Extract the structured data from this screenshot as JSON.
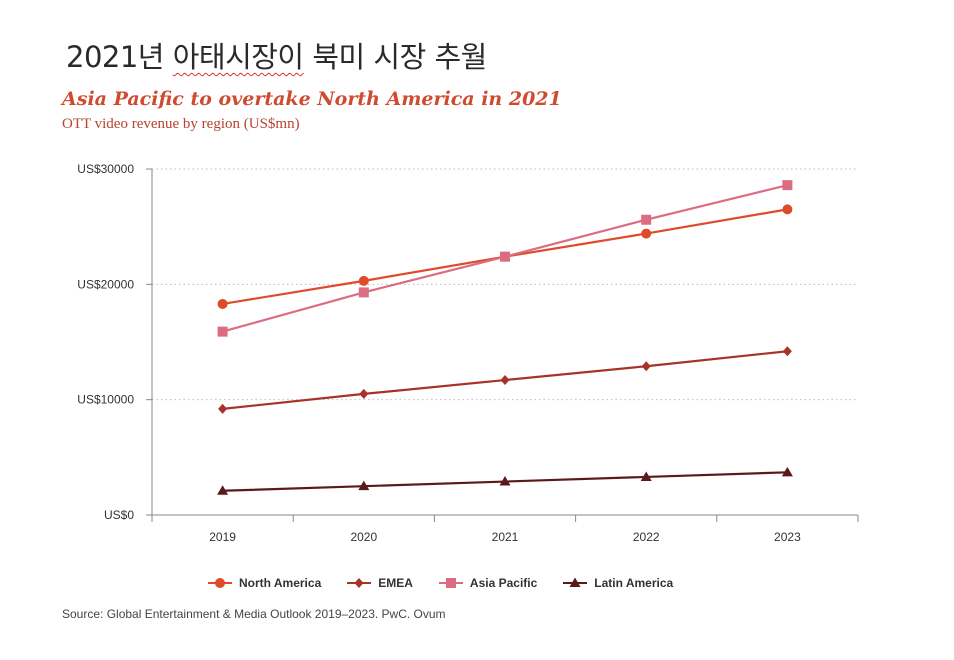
{
  "slide": {
    "title_prefix": "2021년 ",
    "title_underlined": "아태시장이",
    "title_suffix": " 북미 시장 추월"
  },
  "chart_data": {
    "type": "line",
    "title": "Asia Pacific to overtake North America in 2021",
    "subtitle": "OTT video revenue by region (US$mn)",
    "categories": [
      "2019",
      "2020",
      "2021",
      "2022",
      "2023"
    ],
    "ylim": [
      0,
      30000
    ],
    "yticks": [
      0,
      10000,
      20000,
      30000
    ],
    "ytick_labels": [
      "US$0",
      "US$10000",
      "US$20000",
      "US$30000"
    ],
    "grid": true,
    "legend_position": "bottom",
    "series": [
      {
        "name": "North America",
        "marker": "circle",
        "color": "#de4b2b",
        "values": [
          18300,
          20300,
          22400,
          24400,
          26500
        ]
      },
      {
        "name": "EMEA",
        "marker": "diamond",
        "color": "#a73228",
        "values": [
          9200,
          10500,
          11700,
          12900,
          14200
        ]
      },
      {
        "name": "Asia Pacific",
        "marker": "square",
        "color": "#db6c82",
        "values": [
          15900,
          19300,
          22400,
          25600,
          28600
        ]
      },
      {
        "name": "Latin America",
        "marker": "triangle",
        "color": "#5a1a1c",
        "values": [
          2100,
          2500,
          2900,
          3300,
          3700
        ]
      }
    ],
    "source": "Source: Global Entertainment & Media Outlook 2019–2023. PwC. Ovum"
  }
}
